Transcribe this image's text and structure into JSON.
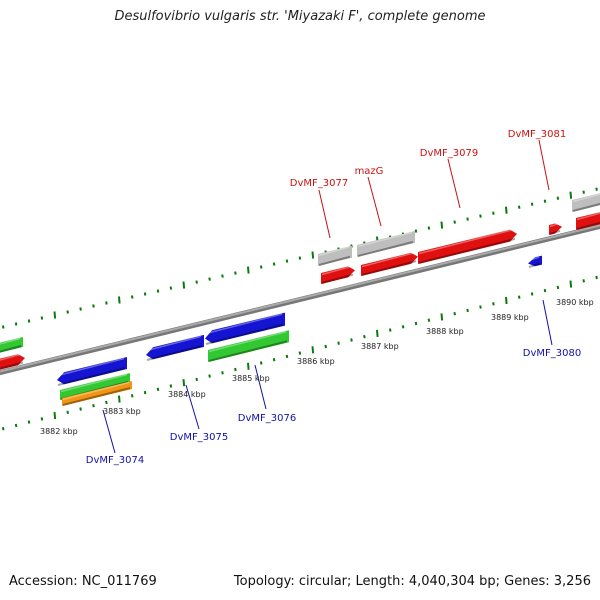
{
  "title": "Desulfovibrio vulgaris str. 'Miyazaki F', complete genome",
  "footer": {
    "accession": "Accession: NC_011769",
    "summary": "Topology: circular; Length: 4,040,304 bp; Genes: 3,256"
  },
  "colors": {
    "red": "#e01010",
    "blue": "#1414d2",
    "green": "#32c832",
    "orange": "#f09614",
    "gray": "#bebebe",
    "tick": "#0a7a0a",
    "backbone": "#8a8a8a",
    "top_label": "#cc1111",
    "bottom_label": "#1111aa"
  },
  "top_labels": [
    "DvMF_3077",
    "mazG",
    "DvMF_3079",
    "DvMF_3081"
  ],
  "bottom_labels": [
    "DvMF_3074",
    "DvMF_3075",
    "DvMF_3076",
    "DvMF_3080"
  ],
  "scale_labels": [
    "3882 kbp",
    "3883 kbp",
    "3884 kbp",
    "3885 kbp",
    "3886 kbp",
    "3887 kbp",
    "3888 kbp",
    "3889 kbp",
    "3890 kbp"
  ]
}
